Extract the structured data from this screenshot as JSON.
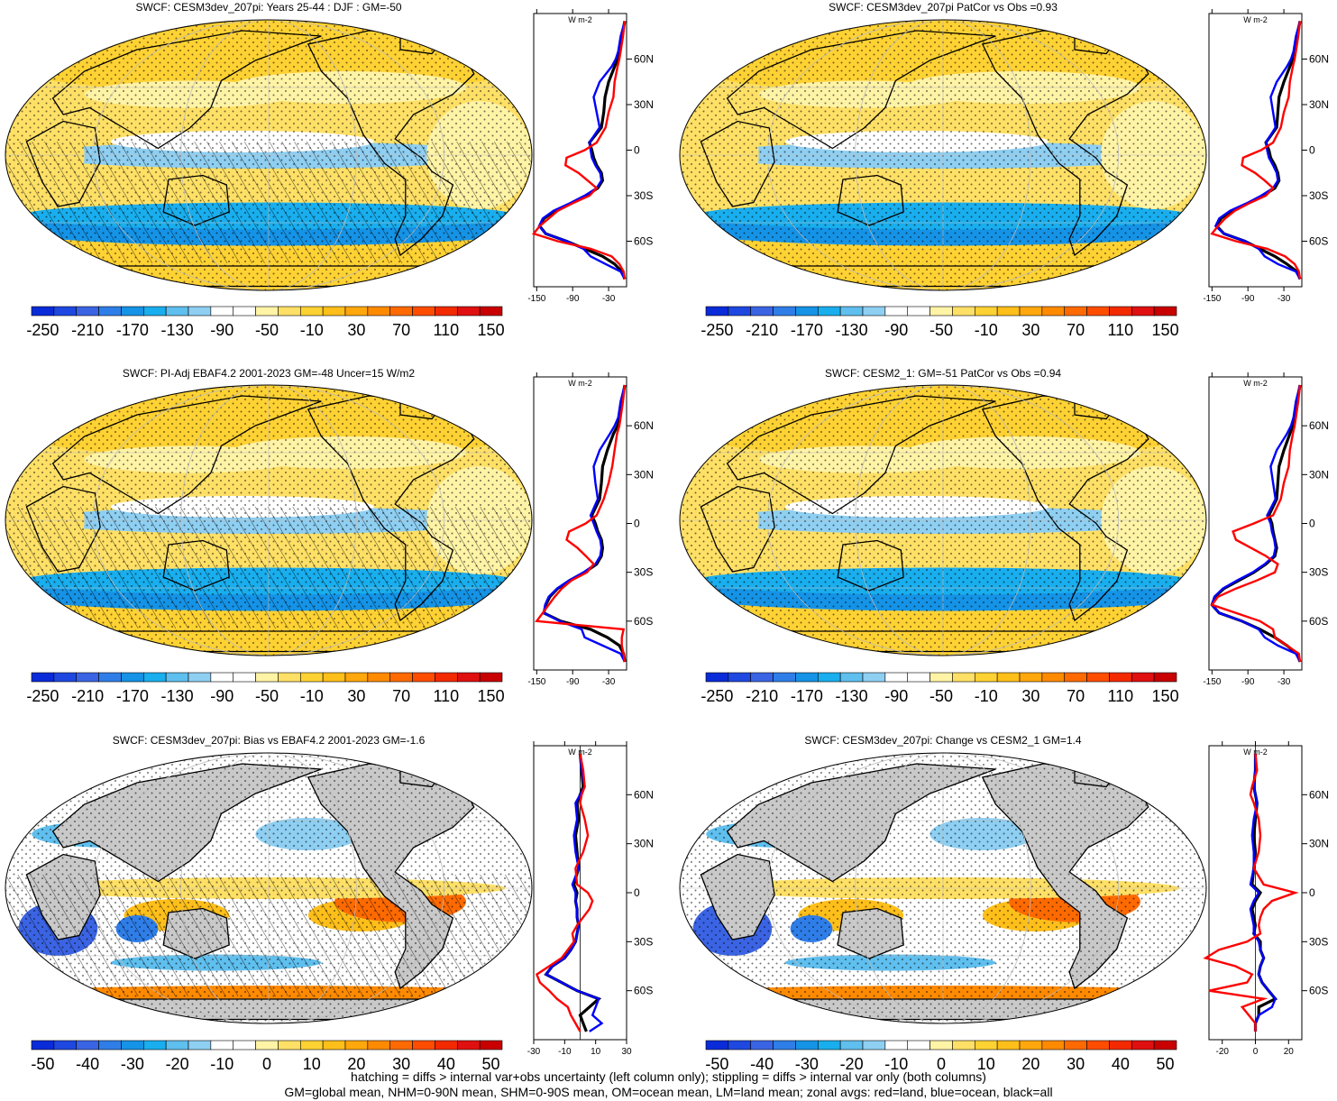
{
  "figure": {
    "colors": {
      "land": "#c9c9c9",
      "zonal_land": "#ff0000",
      "zonal_ocean": "#0000ff",
      "zonal_all": "#000000"
    },
    "colorbar_abs": {
      "labels": [
        "-250",
        "-210",
        "-170",
        "-130",
        "-90",
        "-50",
        "-10",
        "30",
        "70",
        "110",
        "150"
      ],
      "colors": [
        "#0a2bd8",
        "#1e48e0",
        "#3b64e4",
        "#2f7ee8",
        "#1593e6",
        "#19aeee",
        "#5fbfee",
        "#8ecff2",
        "#ffffff",
        "#ffffff",
        "#fff3a6",
        "#ffe066",
        "#ffd234",
        "#ffbf1a",
        "#ffa70d",
        "#ff8a00",
        "#ff6a00",
        "#ff4d00",
        "#f32a00",
        "#e01010",
        "#c80000"
      ]
    },
    "colorbar_diff": {
      "labels": [
        "-50",
        "-40",
        "-30",
        "-20",
        "-10",
        "0",
        "10",
        "20",
        "30",
        "40",
        "50"
      ],
      "colors": [
        "#0a2bd8",
        "#1e48e0",
        "#3b64e4",
        "#2f7ee8",
        "#1593e6",
        "#19aeee",
        "#5fbfee",
        "#8ecff2",
        "#ffffff",
        "#ffffff",
        "#fff3a6",
        "#ffe066",
        "#ffd234",
        "#ffbf1a",
        "#ffa70d",
        "#ff8a00",
        "#ff6a00",
        "#ff4d00",
        "#f32a00",
        "#e01010",
        "#c80000"
      ]
    },
    "footer": [
      "hatching = diffs > internal var+obs uncertainty (left column only); stippling = diffs > internal var only (both columns)",
      "GM=global mean, NHM=0-90N mean, SHM=0-90S mean, OM=ocean mean, LM=land mean; zonal avgs: red=land, blue=ocean, black=all"
    ]
  },
  "chart_data": [
    {
      "type": "heatmap",
      "title": "SWCF: CESM3dev_207pi: Years 25-44 : DJF : GM=-50",
      "colorbar": "abs",
      "zonal": {
        "type": "line",
        "unit": "W m-2",
        "x_ticks": [
          "-150",
          "-90",
          "-30"
        ],
        "y_ticks": [
          "60N",
          "30N",
          "0",
          "30S",
          "60S"
        ],
        "xlim": [
          -155,
          0
        ],
        "ylim": [
          -90,
          90
        ],
        "lat": [
          85,
          75,
          65,
          60,
          55,
          45,
          35,
          25,
          15,
          5,
          0,
          -5,
          -10,
          -15,
          -20,
          -25,
          -30,
          -35,
          -40,
          -45,
          -50,
          -55,
          -60,
          -65,
          -70,
          -75,
          -80,
          -85
        ],
        "series": [
          {
            "key": "zonal_all",
            "values": [
              -3,
              -8,
              -12,
              -15,
              -20,
              -30,
              -36,
              -38,
              -42,
              -62,
              -58,
              -55,
              -50,
              -42,
              -40,
              -48,
              -68,
              -92,
              -120,
              -138,
              -145,
              -135,
              -100,
              -70,
              -40,
              -20,
              -8,
              -3
            ]
          },
          {
            "key": "zonal_ocean",
            "values": [
              -3,
              -10,
              -14,
              -18,
              -25,
              -45,
              -55,
              -50,
              -45,
              -62,
              -60,
              -58,
              -52,
              -44,
              -42,
              -50,
              -70,
              -95,
              -122,
              -140,
              -146,
              -135,
              -100,
              -72,
              -60,
              -35,
              -10,
              -3
            ]
          },
          {
            "key": "zonal_land",
            "values": [
              -3,
              -6,
              -10,
              -12,
              -15,
              -20,
              -22,
              -30,
              -35,
              -50,
              -70,
              -100,
              -102,
              -80,
              -65,
              -50,
              -62,
              -90,
              -115,
              -130,
              -145,
              -155,
              -115,
              -60,
              -25,
              -12,
              -5,
              -3
            ]
          }
        ]
      }
    },
    {
      "type": "heatmap",
      "title": "SWCF: CESM3dev_207pi PatCor vs Obs =0.93",
      "colorbar": "abs",
      "zonal": {
        "type": "line",
        "unit": "W m-2",
        "x_ticks": [
          "-150",
          "-90",
          "-30"
        ],
        "y_ticks": [
          "60N",
          "30N",
          "0",
          "30S",
          "60S"
        ],
        "xlim": [
          -155,
          0
        ],
        "ylim": [
          -90,
          90
        ],
        "lat": [
          85,
          75,
          65,
          60,
          55,
          45,
          35,
          25,
          15,
          5,
          0,
          -5,
          -10,
          -15,
          -20,
          -25,
          -30,
          -35,
          -40,
          -45,
          -50,
          -55,
          -60,
          -65,
          -70,
          -75,
          -80,
          -85
        ],
        "series": [
          {
            "key": "zonal_all",
            "values": [
              -3,
              -8,
              -12,
              -15,
              -20,
              -30,
              -38,
              -40,
              -42,
              -60,
              -55,
              -52,
              -45,
              -40,
              -38,
              -45,
              -65,
              -90,
              -118,
              -135,
              -142,
              -130,
              -95,
              -70,
              -45,
              -25,
              -8,
              -3
            ]
          },
          {
            "key": "zonal_ocean",
            "values": [
              -3,
              -10,
              -14,
              -18,
              -25,
              -42,
              -52,
              -48,
              -44,
              -60,
              -58,
              -55,
              -48,
              -42,
              -40,
              -48,
              -68,
              -92,
              -120,
              -138,
              -144,
              -130,
              -95,
              -72,
              -62,
              -40,
              -10,
              -3
            ]
          },
          {
            "key": "zonal_land",
            "values": [
              -3,
              -6,
              -10,
              -12,
              -15,
              -20,
              -22,
              -30,
              -35,
              -48,
              -68,
              -98,
              -100,
              -78,
              -62,
              -48,
              -60,
              -88,
              -112,
              -128,
              -140,
              -150,
              -110,
              -58,
              -28,
              -12,
              -5,
              -3
            ]
          }
        ]
      }
    },
    {
      "type": "heatmap",
      "title": "SWCF: PI-Adj EBAF4.2 2001-2023 GM=-48 Uncer=15 W/m2",
      "colorbar": "abs",
      "zonal": {
        "type": "line",
        "unit": "W m-2",
        "x_ticks": [
          "-150",
          "-90",
          "-30"
        ],
        "y_ticks": [
          "60N",
          "30N",
          "0",
          "30S",
          "60S"
        ],
        "xlim": [
          -155,
          0
        ],
        "ylim": [
          -90,
          90
        ],
        "lat": [
          85,
          75,
          65,
          60,
          55,
          45,
          35,
          25,
          15,
          5,
          0,
          -5,
          -10,
          -15,
          -20,
          -25,
          -30,
          -35,
          -40,
          -45,
          -50,
          -55,
          -60,
          -65,
          -70,
          -75,
          -80,
          -85
        ],
        "series": [
          {
            "key": "zonal_all",
            "values": [
              -3,
              -8,
              -12,
              -15,
              -22,
              -32,
              -40,
              -42,
              -45,
              -58,
              -52,
              -48,
              -42,
              -40,
              -42,
              -50,
              -70,
              -95,
              -115,
              -128,
              -135,
              -138,
              -110,
              -60,
              -32,
              -12,
              -5,
              -3
            ]
          },
          {
            "key": "zonal_ocean",
            "values": [
              -3,
              -10,
              -14,
              -20,
              -28,
              -45,
              -55,
              -52,
              -48,
              -60,
              -55,
              -50,
              -44,
              -42,
              -44,
              -52,
              -72,
              -96,
              -116,
              -130,
              -136,
              -138,
              -112,
              -75,
              -70,
              -40,
              -10,
              -3
            ]
          },
          {
            "key": "zonal_land",
            "values": [
              -3,
              -6,
              -10,
              -12,
              -16,
              -20,
              -24,
              -30,
              -38,
              -50,
              -68,
              -96,
              -100,
              -82,
              -68,
              -55,
              -66,
              -92,
              -108,
              -120,
              -130,
              -140,
              -150,
              -5,
              -8,
              -8,
              -5,
              -3
            ]
          }
        ]
      }
    },
    {
      "type": "heatmap",
      "title": "SWCF: CESM2_1: GM=-51 PatCor vs Obs =0.94",
      "colorbar": "abs",
      "zonal": {
        "type": "line",
        "unit": "W m-2",
        "x_ticks": [
          "-150",
          "-90",
          "-30"
        ],
        "y_ticks": [
          "60N",
          "30N",
          "0",
          "30S",
          "60S"
        ],
        "xlim": [
          -155,
          0
        ],
        "ylim": [
          -90,
          90
        ],
        "lat": [
          85,
          75,
          65,
          60,
          55,
          45,
          35,
          25,
          15,
          5,
          0,
          -5,
          -10,
          -15,
          -20,
          -25,
          -30,
          -35,
          -40,
          -45,
          -50,
          -55,
          -60,
          -65,
          -70,
          -75,
          -80,
          -85
        ],
        "series": [
          {
            "key": "zonal_all",
            "values": [
              -3,
              -8,
              -12,
              -15,
              -20,
              -30,
              -38,
              -40,
              -42,
              -55,
              -50,
              -48,
              -45,
              -42,
              -45,
              -60,
              -80,
              -105,
              -130,
              -145,
              -150,
              -138,
              -100,
              -70,
              -45,
              -25,
              -8,
              -3
            ]
          },
          {
            "key": "zonal_ocean",
            "values": [
              -3,
              -10,
              -14,
              -18,
              -25,
              -42,
              -52,
              -48,
              -44,
              -58,
              -52,
              -50,
              -46,
              -44,
              -47,
              -62,
              -82,
              -108,
              -132,
              -146,
              -150,
              -138,
              -100,
              -72,
              -62,
              -40,
              -10,
              -3
            ]
          },
          {
            "key": "zonal_land",
            "values": [
              -3,
              -6,
              -10,
              -12,
              -15,
              -20,
              -22,
              -30,
              -35,
              -48,
              -80,
              -115,
              -110,
              -85,
              -60,
              -40,
              -45,
              -75,
              -110,
              -140,
              -150,
              -110,
              -70,
              -48,
              -45,
              -25,
              -5,
              -3
            ]
          }
        ]
      }
    },
    {
      "type": "heatmap",
      "title": "SWCF: CESM3dev_207pi: Bias vs EBAF4.2 2001-2023 GM=-1.6",
      "colorbar": "diff",
      "zonal": {
        "type": "line",
        "unit": "W m-2",
        "x_ticks": [
          "-30",
          "-10",
          "10",
          "30"
        ],
        "y_ticks": [
          "60N",
          "30N",
          "0",
          "30S",
          "60S"
        ],
        "xlim": [
          -30,
          30
        ],
        "ylim": [
          -90,
          90
        ],
        "lat": [
          85,
          75,
          65,
          60,
          55,
          45,
          35,
          25,
          15,
          5,
          0,
          -5,
          -10,
          -15,
          -20,
          -25,
          -30,
          -35,
          -40,
          -45,
          -50,
          -55,
          -60,
          -65,
          -70,
          -75,
          -80,
          -85
        ],
        "series": [
          {
            "key": "zonal_all",
            "values": [
              0,
              1,
              2,
              0,
              -2,
              -1,
              -3,
              -2,
              -1,
              -4,
              -2,
              -3,
              -2,
              -2,
              -1,
              -2,
              -3,
              -6,
              -10,
              -18,
              -22,
              -12,
              -2,
              12,
              6,
              0,
              2,
              4
            ]
          },
          {
            "key": "zonal_ocean",
            "values": [
              0,
              1,
              3,
              0,
              -3,
              -2,
              -4,
              -3,
              -1,
              -5,
              -3,
              -3,
              -2,
              -2,
              -1,
              -2,
              -3,
              -6,
              -10,
              -18,
              -22,
              -12,
              -2,
              12,
              10,
              8,
              14,
              6
            ]
          },
          {
            "key": "zonal_land",
            "values": [
              0,
              2,
              3,
              1,
              0,
              3,
              5,
              2,
              -3,
              -2,
              5,
              8,
              6,
              2,
              -2,
              -5,
              -4,
              -8,
              -12,
              -20,
              -28,
              -26,
              -20,
              -15,
              -8,
              -6,
              -3,
              0
            ]
          }
        ]
      }
    },
    {
      "type": "heatmap",
      "title": "SWCF: CESM3dev_207pi: Change vs CESM2_1 GM=1.4",
      "colorbar": "diff",
      "zonal": {
        "type": "line",
        "unit": "W m-2",
        "x_ticks": [
          "-20",
          "0",
          "20"
        ],
        "y_ticks": [
          "60N",
          "30N",
          "0",
          "30S",
          "60S"
        ],
        "xlim": [
          -28,
          28
        ],
        "ylim": [
          -90,
          90
        ],
        "lat": [
          85,
          75,
          65,
          60,
          55,
          45,
          35,
          25,
          15,
          5,
          0,
          -5,
          -10,
          -15,
          -20,
          -25,
          -30,
          -35,
          -40,
          -45,
          -50,
          -55,
          -60,
          -65,
          -70,
          -75,
          -80,
          -85
        ],
        "series": [
          {
            "key": "zonal_all",
            "values": [
              0,
              0,
              -1,
              0,
              1,
              0,
              -1,
              0,
              -1,
              -2,
              3,
              0,
              -2,
              -1,
              0,
              -1,
              3,
              3,
              5,
              3,
              2,
              4,
              8,
              12,
              2,
              2,
              0,
              0
            ]
          },
          {
            "key": "zonal_ocean",
            "values": [
              0,
              0,
              -1,
              0,
              1,
              -1,
              -2,
              -1,
              -1,
              -3,
              2,
              -1,
              -3,
              -2,
              -1,
              -1,
              2,
              3,
              5,
              3,
              2,
              4,
              8,
              12,
              10,
              2,
              0,
              0
            ]
          },
          {
            "key": "zonal_land",
            "values": [
              0,
              1,
              -2,
              -3,
              -1,
              2,
              3,
              2,
              -1,
              5,
              24,
              10,
              5,
              3,
              2,
              3,
              -5,
              -22,
              -30,
              -12,
              -2,
              -5,
              -28,
              5,
              -8,
              -4,
              0,
              0
            ]
          }
        ]
      }
    }
  ]
}
